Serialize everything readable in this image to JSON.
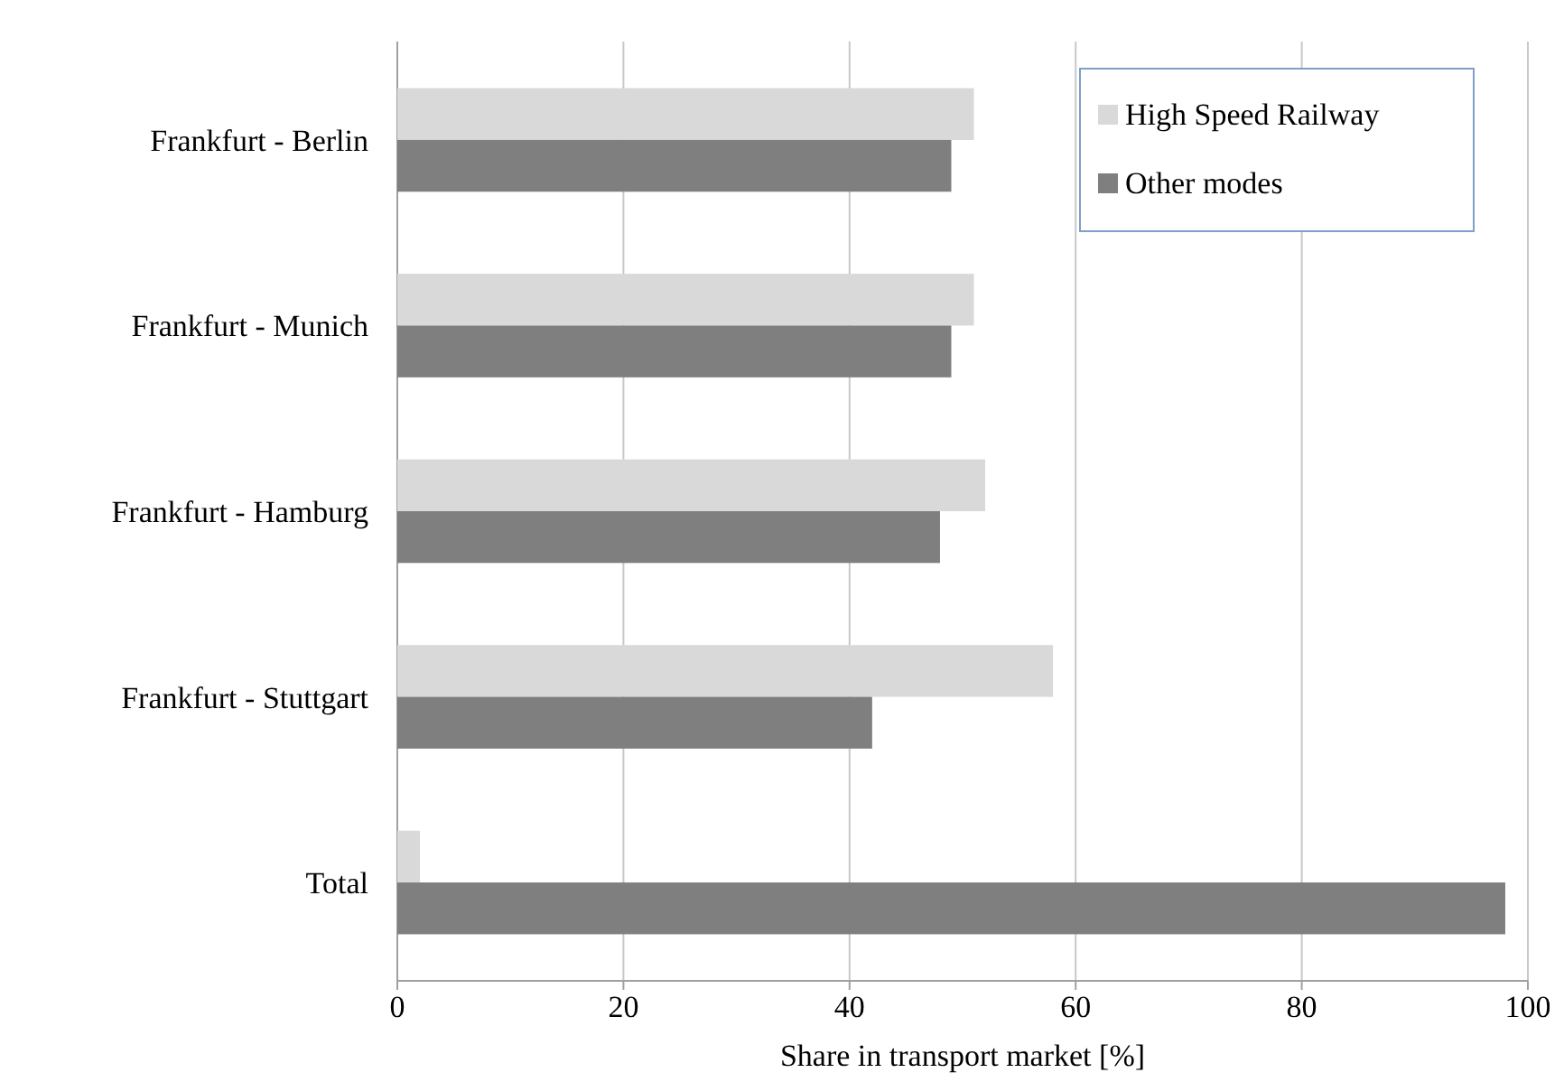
{
  "chart_data": {
    "type": "bar",
    "orientation": "horizontal",
    "xlabel": "Share in transport market [%]",
    "categories": [
      "Frankfurt - Berlin",
      "Frankfurt - Munich",
      "Frankfurt - Hamburg",
      "Frankfurt - Stuttgart",
      "Total"
    ],
    "series": [
      {
        "name": "High Speed Railway",
        "color": "#d9d9d9",
        "values": [
          51,
          51,
          52,
          58,
          2
        ]
      },
      {
        "name": "Other modes",
        "color": "#7f7f7f",
        "values": [
          49,
          49,
          48,
          42,
          98
        ]
      }
    ],
    "xlim": [
      0,
      100
    ],
    "xticks": [
      0,
      20,
      40,
      60,
      80,
      100
    ],
    "grid": "x",
    "legend": "top right"
  }
}
